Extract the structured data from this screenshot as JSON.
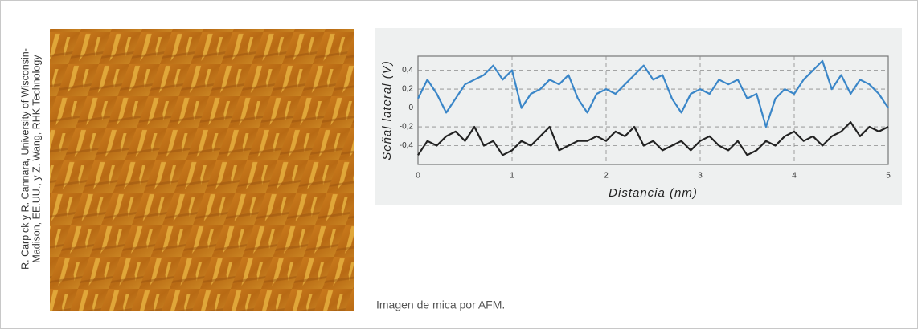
{
  "credit": [
    "R. Carpick y R. Cannara, University of Wisconsin-",
    "Madison, EE.UU., y Z. Wang, RHK Technology"
  ],
  "caption": "Imagen de mica por AFM.",
  "chart_data": {
    "type": "line",
    "y_label": "Señal lateral (V)",
    "x_label": "Distancia (nm)",
    "x": [
      0,
      0.1,
      0.2,
      0.3,
      0.4,
      0.5,
      0.6,
      0.7,
      0.8,
      0.9,
      1,
      1.1,
      1.2,
      1.3,
      1.4,
      1.5,
      1.6,
      1.7,
      1.8,
      1.9,
      2,
      2.1,
      2.2,
      2.3,
      2.4,
      2.5,
      2.6,
      2.7,
      2.8,
      2.9,
      3,
      3.1,
      3.2,
      3.3,
      3.4,
      3.5,
      3.6,
      3.7,
      3.8,
      3.9,
      4,
      4.1,
      4.2,
      4.3,
      4.4,
      4.5,
      4.6,
      4.7,
      4.8,
      4.9,
      5
    ],
    "series": [
      {
        "color": "#3a86c8",
        "values": [
          0.1,
          0.3,
          0.15,
          -0.05,
          0.1,
          0.25,
          0.3,
          0.35,
          0.45,
          0.3,
          0.4,
          0,
          0.15,
          0.2,
          0.3,
          0.25,
          0.35,
          0.1,
          -0.05,
          0.15,
          0.2,
          0.15,
          0.25,
          0.35,
          0.45,
          0.3,
          0.35,
          0.1,
          -0.05,
          0.15,
          0.2,
          0.15,
          0.3,
          0.25,
          0.3,
          0.1,
          0.15,
          -0.2,
          0.1,
          0.2,
          0.15,
          0.3,
          0.4,
          0.5,
          0.2,
          0.35,
          0.15,
          0.3,
          0.25,
          0.15,
          0
        ]
      },
      {
        "color": "#222222",
        "values": [
          -0.5,
          -0.35,
          -0.4,
          -0.3,
          -0.25,
          -0.35,
          -0.2,
          -0.4,
          -0.35,
          -0.5,
          -0.45,
          -0.35,
          -0.4,
          -0.3,
          -0.2,
          -0.45,
          -0.4,
          -0.35,
          -0.35,
          -0.3,
          -0.35,
          -0.25,
          -0.3,
          -0.2,
          -0.4,
          -0.35,
          -0.45,
          -0.4,
          -0.35,
          -0.45,
          -0.35,
          -0.3,
          -0.4,
          -0.45,
          -0.35,
          -0.5,
          -0.45,
          -0.35,
          -0.4,
          -0.3,
          -0.25,
          -0.35,
          -0.3,
          -0.4,
          -0.3,
          -0.25,
          -0.15,
          -0.3,
          -0.2,
          -0.25,
          -0.2
        ]
      }
    ],
    "xlim": [
      0,
      5
    ],
    "xticks": [
      0,
      1,
      2,
      3,
      4,
      5
    ],
    "ylim": [
      -0.6,
      0.55
    ],
    "yticks": [
      {
        "value": 0.4,
        "label": "0,4"
      },
      {
        "value": 0.2,
        "label": "0,2"
      },
      0,
      {
        "value": -0.2,
        "label": "-0,2"
      },
      {
        "value": -0.4,
        "label": "-0,4"
      }
    ],
    "grid": true
  }
}
